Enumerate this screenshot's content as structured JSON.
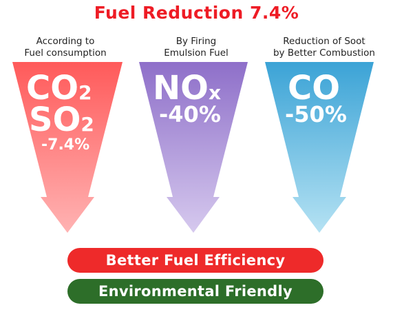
{
  "title": "Fuel Reduction 7.4%",
  "columns": [
    {
      "caption_line1": "According to",
      "caption_line2": "Fuel consumption",
      "compound1_main": "CO",
      "compound1_sub": "2",
      "compound2_main": "SO",
      "compound2_sub": "2",
      "reduction": "-7.4%",
      "color_top": "#ff5a5a",
      "color_bottom": "#ffb3b3"
    },
    {
      "caption_line1": "By Firing",
      "caption_line2": "Emulsion Fuel",
      "compound1_main": "NO",
      "compound1_sub": "x",
      "reduction": "-40%",
      "color_top": "#8e6fc9",
      "color_bottom": "#d6c9ee"
    },
    {
      "caption_line1": "Reduction of Soot",
      "caption_line2": "by Better Combustion",
      "compound1_main": "CO",
      "reduction": "-50%",
      "color_top": "#3ba3d6",
      "color_bottom": "#b5e2f3"
    }
  ],
  "banners": {
    "efficiency": "Better Fuel Efficiency",
    "environment": "Environmental Friendly",
    "efficiency_color": "#ee2a2a",
    "environment_color": "#2d6e29"
  }
}
